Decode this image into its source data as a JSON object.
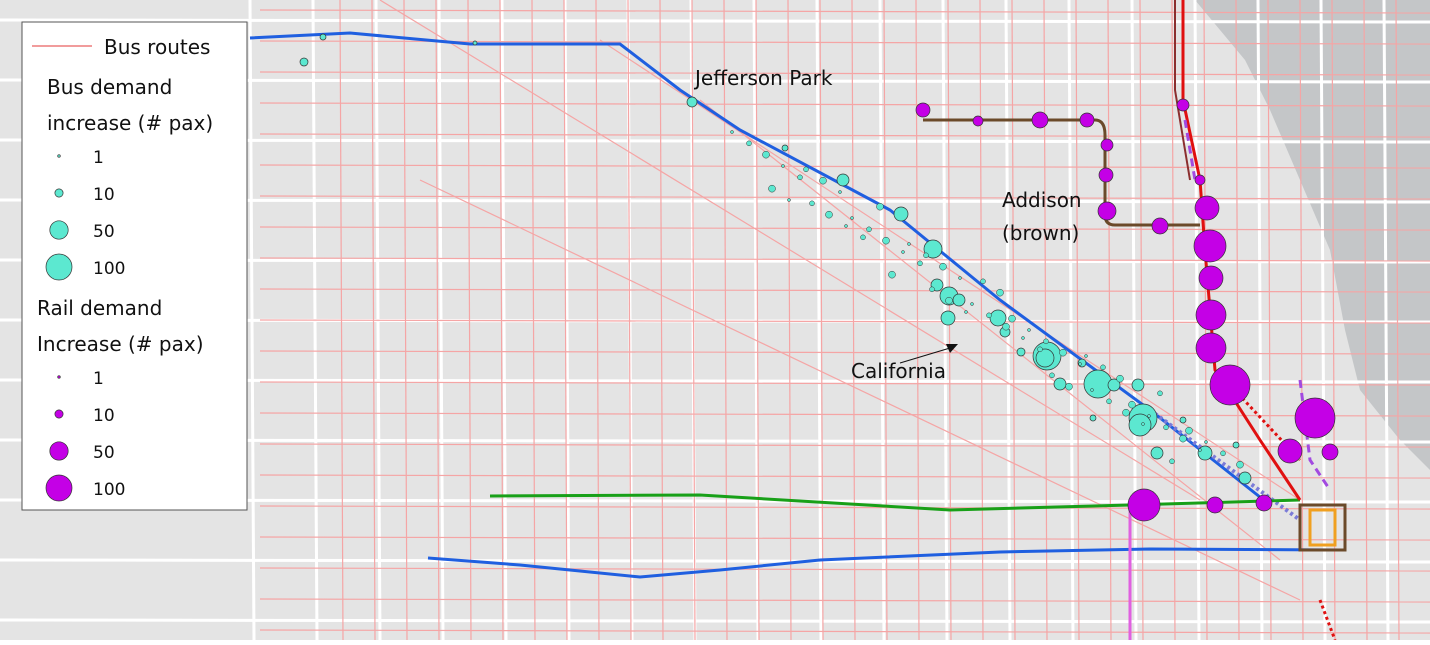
{
  "legend": {
    "bus_routes": "Bus routes",
    "bus_title": [
      "Bus demand",
      "increase (# pax)"
    ],
    "bus_sizes": [
      1,
      10,
      50,
      100
    ],
    "rail_title": [
      "Rail demand",
      "Increase (# pax)"
    ],
    "rail_sizes": [
      1,
      10,
      50,
      100
    ]
  },
  "labels": {
    "jefferson_park": "Jefferson Park",
    "addison": "Addison",
    "addison_line": "(brown)",
    "california": "California"
  }
}
